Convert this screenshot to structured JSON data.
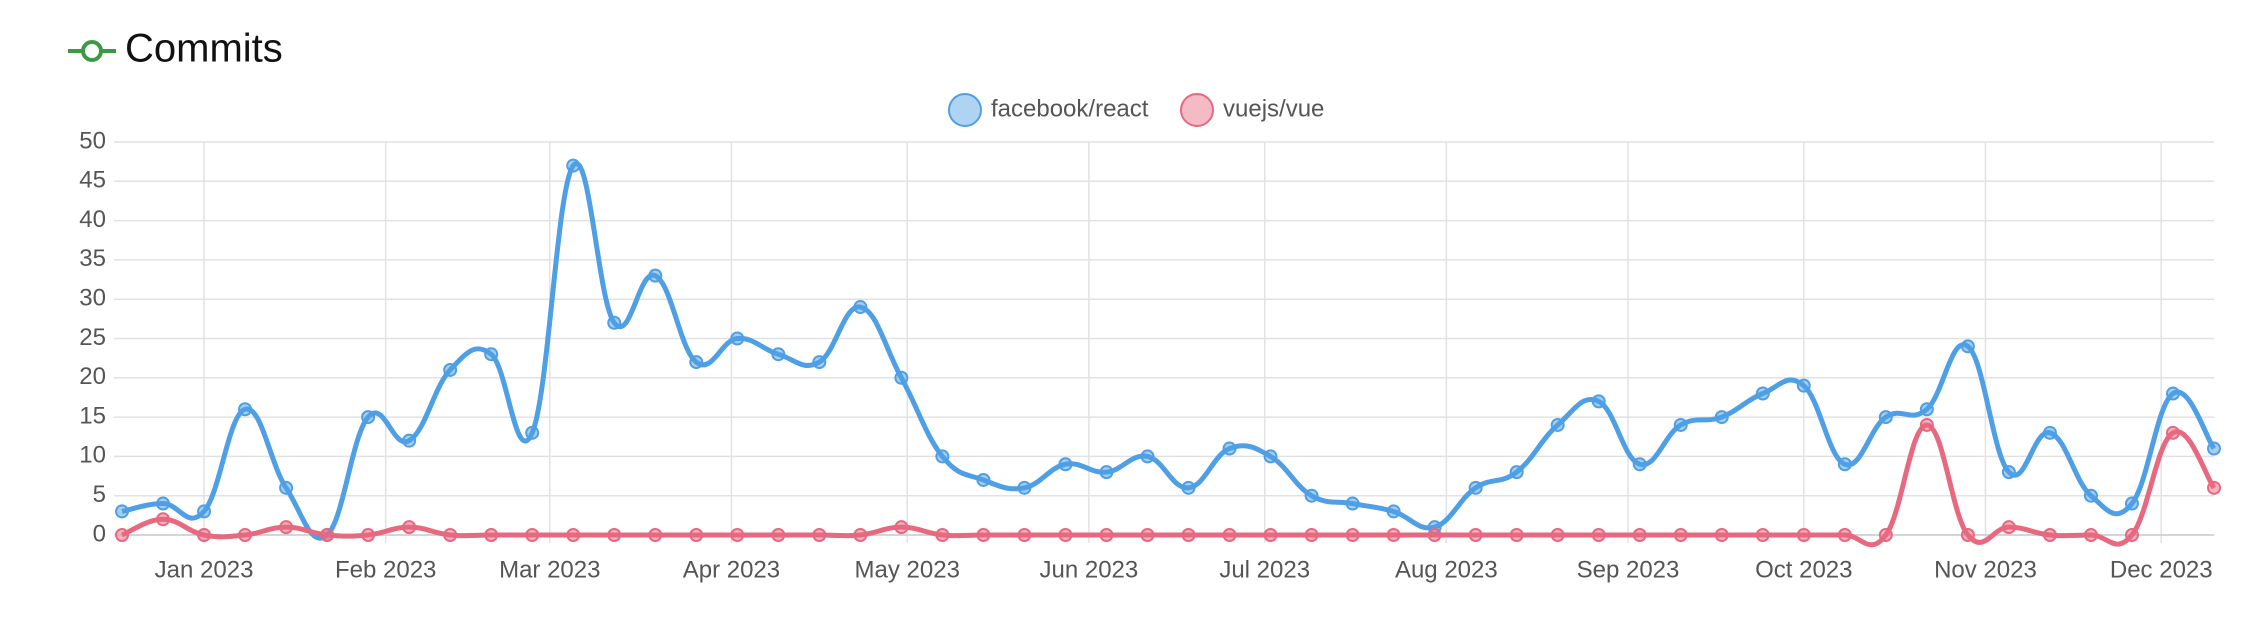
{
  "chart_data": {
    "type": "line",
    "title": "Commits",
    "x": [
      "2022-12-18",
      "2022-12-25",
      "2023-01-01",
      "2023-01-08",
      "2023-01-15",
      "2023-01-22",
      "2023-01-29",
      "2023-02-05",
      "2023-02-12",
      "2023-02-19",
      "2023-02-26",
      "2023-03-05",
      "2023-03-12",
      "2023-03-19",
      "2023-03-26",
      "2023-04-02",
      "2023-04-09",
      "2023-04-16",
      "2023-04-23",
      "2023-04-30",
      "2023-05-07",
      "2023-05-14",
      "2023-05-21",
      "2023-05-28",
      "2023-06-04",
      "2023-06-11",
      "2023-06-18",
      "2023-06-25",
      "2023-07-02",
      "2023-07-09",
      "2023-07-16",
      "2023-07-23",
      "2023-07-30",
      "2023-08-06",
      "2023-08-13",
      "2023-08-20",
      "2023-08-27",
      "2023-09-03",
      "2023-09-10",
      "2023-09-17",
      "2023-09-24",
      "2023-10-01",
      "2023-10-08",
      "2023-10-15",
      "2023-10-22",
      "2023-10-29",
      "2023-11-05",
      "2023-11-12",
      "2023-11-19",
      "2023-11-26",
      "2023-12-03",
      "2023-12-10"
    ],
    "series": [
      {
        "name": "facebook/react",
        "color": "#4e9fe5",
        "values": [
          3,
          4,
          3,
          16,
          6,
          0,
          15,
          12,
          21,
          23,
          13,
          47,
          27,
          33,
          22,
          25,
          23,
          22,
          29,
          20,
          10,
          7,
          6,
          9,
          8,
          10,
          6,
          11,
          10,
          5,
          4,
          3,
          1,
          6,
          8,
          14,
          17,
          9,
          14,
          15,
          18,
          19,
          9,
          15,
          16,
          24,
          8,
          13,
          5,
          4,
          18,
          11
        ]
      },
      {
        "name": "vuejs/vue",
        "color": "#e8687f",
        "values": [
          0,
          2,
          0,
          0,
          1,
          0,
          0,
          1,
          0,
          0,
          0,
          0,
          0,
          0,
          0,
          0,
          0,
          0,
          0,
          1,
          0,
          0,
          0,
          0,
          0,
          0,
          0,
          0,
          0,
          0,
          0,
          0,
          0,
          0,
          0,
          0,
          0,
          0,
          0,
          0,
          0,
          0,
          0,
          0,
          14,
          0,
          1,
          0,
          0,
          0,
          13,
          6
        ]
      }
    ],
    "xlim": [
      "2022-12-18",
      "2023-12-10"
    ],
    "xticks": [
      {
        "value": "2023-01-01",
        "label": "Jan 2023"
      },
      {
        "value": "2023-02-01",
        "label": "Feb 2023"
      },
      {
        "value": "2023-03-01",
        "label": "Mar 2023"
      },
      {
        "value": "2023-04-01",
        "label": "Apr 2023"
      },
      {
        "value": "2023-05-01",
        "label": "May 2023"
      },
      {
        "value": "2023-06-01",
        "label": "Jun 2023"
      },
      {
        "value": "2023-07-01",
        "label": "Jul 2023"
      },
      {
        "value": "2023-08-01",
        "label": "Aug 2023"
      },
      {
        "value": "2023-09-01",
        "label": "Sep 2023"
      },
      {
        "value": "2023-10-01",
        "label": "Oct 2023"
      },
      {
        "value": "2023-11-01",
        "label": "Nov 2023"
      },
      {
        "value": "2023-12-01",
        "label": "Dec 2023"
      }
    ],
    "ylim": [
      0,
      50
    ],
    "yticks": [
      0,
      5,
      10,
      15,
      20,
      25,
      30,
      35,
      40,
      45,
      50
    ],
    "grid": true,
    "legend": "top"
  }
}
